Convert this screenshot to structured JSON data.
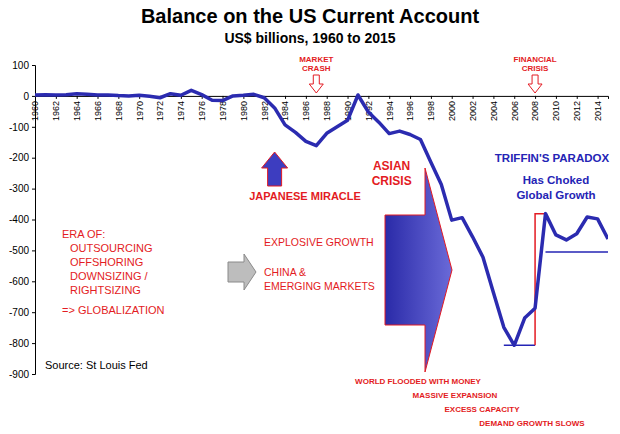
{
  "chart_data": {
    "type": "line",
    "title": "Balance on the US Current Account",
    "subtitle": "US$ billions, 1960 to 2015",
    "source": "Source: St Louis Fed",
    "x": [
      1960,
      1961,
      1962,
      1963,
      1964,
      1965,
      1966,
      1967,
      1968,
      1969,
      1970,
      1971,
      1972,
      1973,
      1974,
      1975,
      1976,
      1977,
      1978,
      1979,
      1980,
      1981,
      1982,
      1983,
      1984,
      1985,
      1986,
      1987,
      1988,
      1989,
      1990,
      1991,
      1992,
      1993,
      1994,
      1995,
      1996,
      1997,
      1998,
      1999,
      2000,
      2001,
      2002,
      2003,
      2004,
      2005,
      2006,
      2007,
      2008,
      2009,
      2010,
      2011,
      2012,
      2013,
      2014,
      2015
    ],
    "values": [
      3,
      4,
      3,
      4,
      7,
      5,
      3,
      3,
      1,
      0,
      2,
      -1,
      -6,
      7,
      2,
      18,
      4,
      -14,
      -15,
      0,
      2,
      5,
      -6,
      -39,
      -94,
      -118,
      -147,
      -161,
      -121,
      -100,
      -79,
      3,
      -52,
      -85,
      -122,
      -114,
      -125,
      -141,
      -215,
      -287,
      -402,
      -394,
      -456,
      -522,
      -636,
      -749,
      -807,
      -719,
      -687,
      -381,
      -450,
      -466,
      -446,
      -392,
      -398,
      -463
    ],
    "color": "#2b2bb0",
    "xlim": [
      1960,
      2015
    ],
    "xticks": [
      1960,
      1962,
      1964,
      1966,
      1968,
      1970,
      1972,
      1974,
      1976,
      1978,
      1980,
      1982,
      1984,
      1986,
      1988,
      1990,
      1992,
      1994,
      1996,
      1998,
      2000,
      2002,
      2004,
      2006,
      2008,
      2010,
      2012,
      2014
    ],
    "ylim": [
      -900,
      100
    ],
    "yticks": [
      -900,
      -800,
      -700,
      -600,
      -500,
      -400,
      -300,
      -200,
      -100,
      0,
      100
    ],
    "grid": false,
    "annotations": [
      "MARKET",
      "CRASH",
      "FINANCIAL",
      "CRISIS",
      "JAPANESE MIRACLE",
      "ASIAN",
      "CRISIS",
      "TRIFFIN'S PARADOX",
      "Has Choked",
      "Global Growth",
      "ERA OF:",
      "OUTSOURCING",
      "OFFSHORING",
      "DOWNSIZING /",
      "RIGHTSIZING",
      "=> GLOBALIZATION",
      "EXPLOSIVE GROWTH",
      "CHINA &",
      "EMERGING MARKETS",
      "WORLD FLOODED WITH MONEY",
      "MASSIVE EXPANSION",
      "EXCESS CAPACITY",
      "DEMAND GROWTH SLOWS"
    ]
  }
}
